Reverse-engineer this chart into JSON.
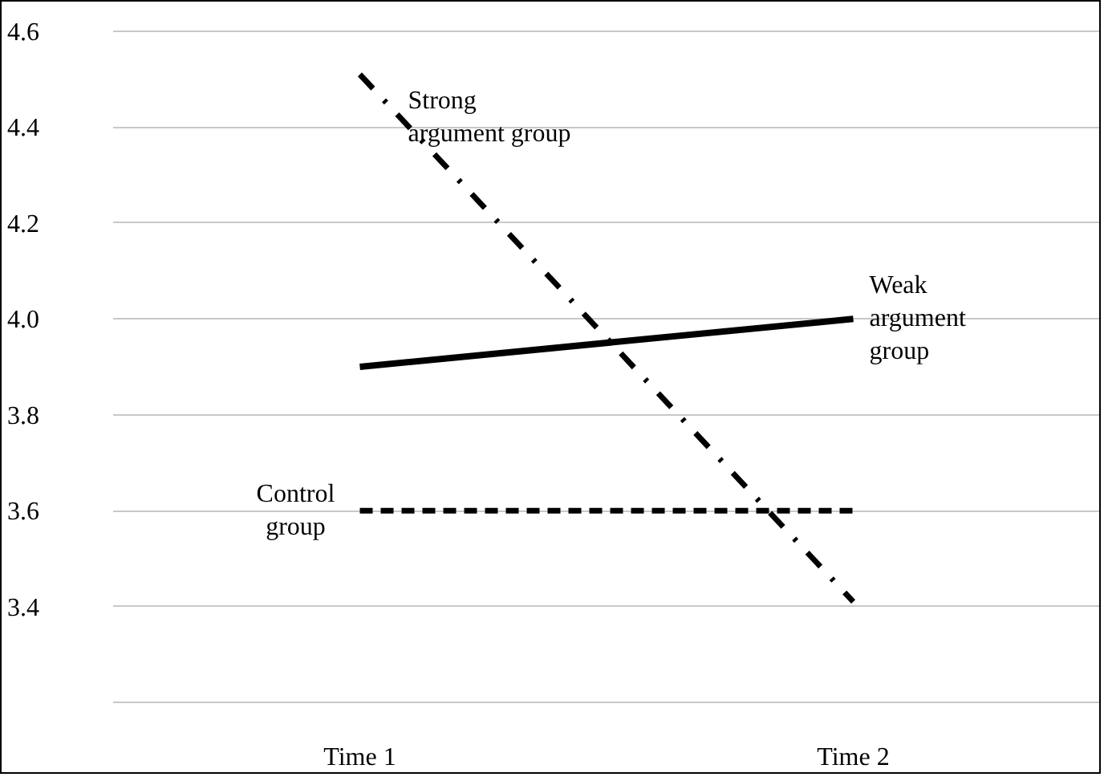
{
  "chart_data": {
    "type": "line",
    "categories": [
      "Time 1",
      "Time 2"
    ],
    "series": [
      {
        "name": "Strong argument group",
        "color": "#000000",
        "values": [
          4.51,
          3.41
        ],
        "line_style": "dashdot"
      },
      {
        "name": "Weak argument group",
        "color": "#000000",
        "values": [
          3.9,
          4.0
        ],
        "line_style": "solid"
      },
      {
        "name": "Control group",
        "color": "#000000",
        "values": [
          3.6,
          3.6
        ],
        "line_style": "dashed"
      }
    ],
    "ylim": [
      3.2,
      4.6
    ],
    "yticks": [
      {
        "value": 3.2,
        "label": null
      },
      3.4,
      3.6,
      3.8,
      {
        "value": 4.0,
        "label": "4.0"
      },
      4.2,
      4.4,
      4.6
    ],
    "grid": "y",
    "legend": false,
    "marker": "none"
  }
}
